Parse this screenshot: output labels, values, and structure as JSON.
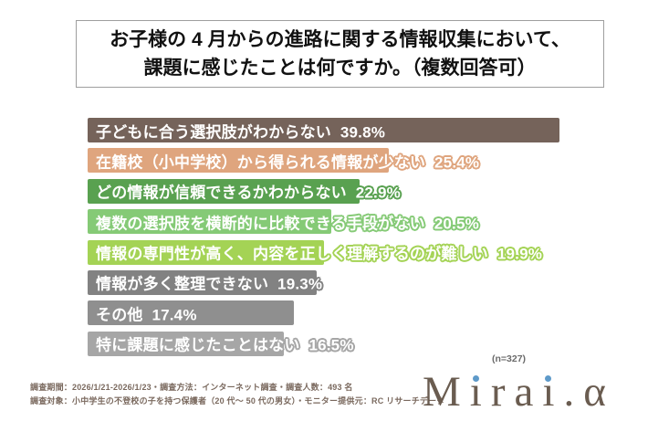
{
  "title": {
    "line1": "お子様の 4 月からの進路に関する情報収集において、",
    "line2": "課題に感じたことは何ですか。（複数回答可）"
  },
  "chart_data": {
    "type": "bar",
    "orientation": "horizontal",
    "unit": "%",
    "xlim": [
      0,
      40
    ],
    "grid": false,
    "legend": "none",
    "categories": [
      "子どもに合う選択肢がわからない",
      "在籍校（小中学校）から得られる情報が少ない",
      "どの情報が信頼できるかわからない",
      "複数の選択肢を横断的に比較できる手段がない",
      "情報の専門性が高く、内容を正しく理解するのが難しい",
      "情報が多く整理できない",
      "その他",
      "特に課題に感じたことはない"
    ],
    "values": [
      39.8,
      25.4,
      22.9,
      20.5,
      19.9,
      19.3,
      17.4,
      16.5
    ],
    "bar_colors": [
      "#75635A",
      "#DFA57E",
      "#59A150",
      "#85CA76",
      "#A4D355",
      "#828282",
      "#8F8F8F",
      "#A6A6A6"
    ],
    "value_label_color": "#FFFFFF",
    "sample_note": "(n=327)"
  },
  "footer": {
    "line1": "調査期間：2026/1/21-2026/1/23・調査方法：インターネット調査・調査人数：493 名",
    "line2": "調査対象：小中学生の不登校の子を持つ保護者（20 代〜 50 代の男女）・モニター提供元：RC リサーチデータ"
  },
  "logo": {
    "text": "Mirai.α",
    "color": "#6A5C50",
    "dot_color": "#5E9AC9"
  }
}
